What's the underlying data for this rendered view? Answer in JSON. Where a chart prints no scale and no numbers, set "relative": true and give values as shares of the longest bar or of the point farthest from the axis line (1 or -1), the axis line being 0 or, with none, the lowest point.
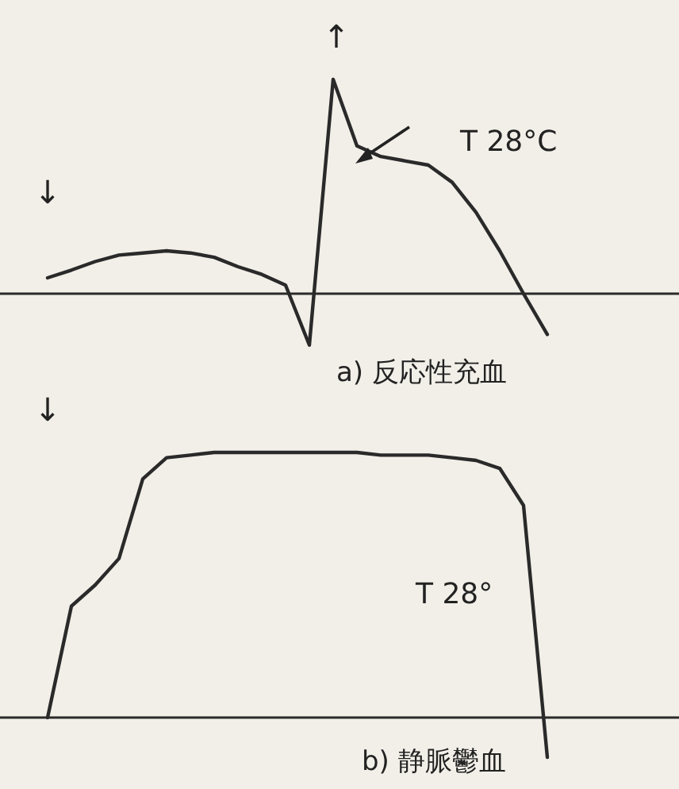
{
  "chart_data": [
    {
      "type": "line",
      "relative": true,
      "color": "#2a2a2a",
      "categories": [
        null,
        null,
        null,
        null,
        null,
        null,
        null,
        null,
        null,
        null,
        null,
        null,
        null,
        null,
        null,
        null,
        null,
        null,
        null,
        null,
        null,
        null
      ],
      "values": [
        0.074,
        0.11,
        0.15,
        0.18,
        0.19,
        0.2,
        0.19,
        0.17,
        0.126,
        0.09,
        0.04,
        -0.24,
        1,
        0.69,
        0.64,
        0.62,
        0.6,
        0.52,
        0.38,
        0.2,
        0.0,
        -0.19
      ],
      "annotations": [
        "↓",
        "↑",
        "T 28°C",
        "a) 反応性充血"
      ]
    },
    {
      "type": "line",
      "relative": true,
      "color": "#2a2a2a",
      "categories": [
        null,
        null,
        null,
        null,
        null,
        null,
        null,
        null,
        null,
        null,
        null,
        null,
        null,
        null,
        null,
        null,
        null,
        null,
        null,
        null,
        null,
        null
      ],
      "values": [
        0,
        0.42,
        0.5,
        0.6,
        0.9,
        0.98,
        0.99,
        1,
        1,
        1,
        1,
        1,
        1,
        1,
        0.99,
        0.99,
        0.99,
        0.98,
        0.97,
        0.94,
        0.8,
        -0.15
      ],
      "annotations": [
        "↓",
        "T 28°",
        "b) 静脈鬱血"
      ]
    }
  ]
}
